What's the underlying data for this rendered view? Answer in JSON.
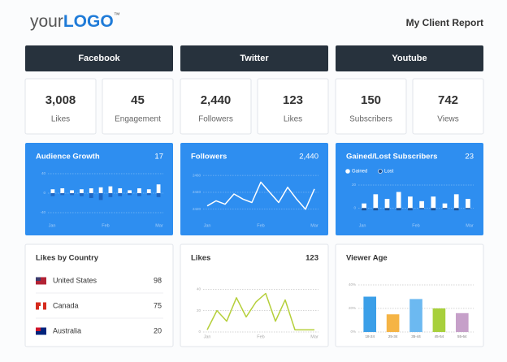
{
  "header": {
    "logo_prefix": "your",
    "logo_main": "LOGO",
    "logo_mark": "™",
    "title": "My Client Report"
  },
  "columns": [
    {
      "name": "Facebook",
      "stats": [
        {
          "value": "3,008",
          "label": "Likes"
        },
        {
          "value": "45",
          "label": "Engagement"
        }
      ]
    },
    {
      "name": "Twitter",
      "stats": [
        {
          "value": "2,440",
          "label": "Followers"
        },
        {
          "value": "123",
          "label": "Likes"
        }
      ]
    },
    {
      "name": "Youtube",
      "stats": [
        {
          "value": "150",
          "label": "Subscribers"
        },
        {
          "value": "742",
          "label": "Views"
        }
      ]
    }
  ],
  "charts": [
    {
      "type": "bar",
      "title": "Audience Growth",
      "total": "17",
      "xlabels": [
        "Jan",
        "Feb",
        "Mar"
      ],
      "ylim": [
        -40,
        40
      ],
      "yticks": [
        -40,
        0,
        40
      ],
      "series": [
        {
          "color": "#ffffff",
          "values": [
            8,
            10,
            6,
            8,
            10,
            12,
            14,
            10,
            6,
            10,
            8,
            18
          ]
        },
        {
          "color": "#1f66c2",
          "values": [
            -6,
            -4,
            -4,
            -6,
            -10,
            -14,
            -8,
            -6,
            -4,
            -6,
            -4,
            -8
          ]
        }
      ]
    },
    {
      "type": "line",
      "title": "Followers",
      "total": "2,440",
      "xlabels": [
        "Jan",
        "Feb",
        "Mar"
      ],
      "ylim": [
        2416,
        2462
      ],
      "yticks": [
        2420,
        2440,
        2460
      ],
      "series": [
        {
          "color": "#ffffff",
          "values": [
            2424,
            2430,
            2426,
            2438,
            2432,
            2428,
            2452,
            2440,
            2428,
            2446,
            2432,
            2420,
            2444
          ]
        }
      ]
    },
    {
      "type": "bar",
      "title": "Gained/Lost Subscribers",
      "total": "23",
      "xlabels": [
        "Jan",
        "Feb",
        "Mar"
      ],
      "ylim": [
        -4,
        20
      ],
      "yticks": [
        0,
        20
      ],
      "series": [
        {
          "name": "Gained",
          "color": "#ffffff",
          "values": [
            4,
            12,
            8,
            14,
            10,
            6,
            10,
            4,
            12,
            8
          ]
        },
        {
          "name": "Lost",
          "color": "#1f4f8f",
          "values": [
            -2,
            -2,
            -2,
            -2,
            -2,
            -1,
            -2,
            -1,
            -2,
            -1
          ]
        }
      ]
    },
    {
      "type": "line",
      "title": "Likes",
      "total": "123",
      "xlabels": [
        "Jan",
        "Feb",
        "Mar"
      ],
      "ylim": [
        0,
        44
      ],
      "yticks": [
        0,
        20,
        40
      ],
      "series": [
        {
          "color": "#b5cf3a",
          "values": [
            2,
            20,
            10,
            32,
            14,
            28,
            36,
            10,
            30,
            2,
            2,
            2
          ]
        }
      ]
    },
    {
      "type": "bar",
      "title": "Viewer Age",
      "categories": [
        "18-24",
        "25-34",
        "35-44",
        "45-54",
        "55-64"
      ],
      "ylim": [
        0,
        40
      ],
      "yticks": [
        {
          "value": 0,
          "label": "0%"
        },
        {
          "value": 20,
          "label": "20%"
        },
        {
          "value": 40,
          "label": "40%"
        }
      ],
      "colors": [
        "#3b9fe8",
        "#f5b445",
        "#6cb9f1",
        "#a8d03c",
        "#c6a0c9"
      ],
      "values": [
        30,
        15,
        28,
        20,
        16
      ]
    }
  ],
  "country_table": {
    "title": "Likes by Country",
    "rows": [
      [
        "United States",
        "98"
      ],
      [
        "Canada",
        "75"
      ],
      [
        "Australia",
        "20"
      ]
    ]
  }
}
